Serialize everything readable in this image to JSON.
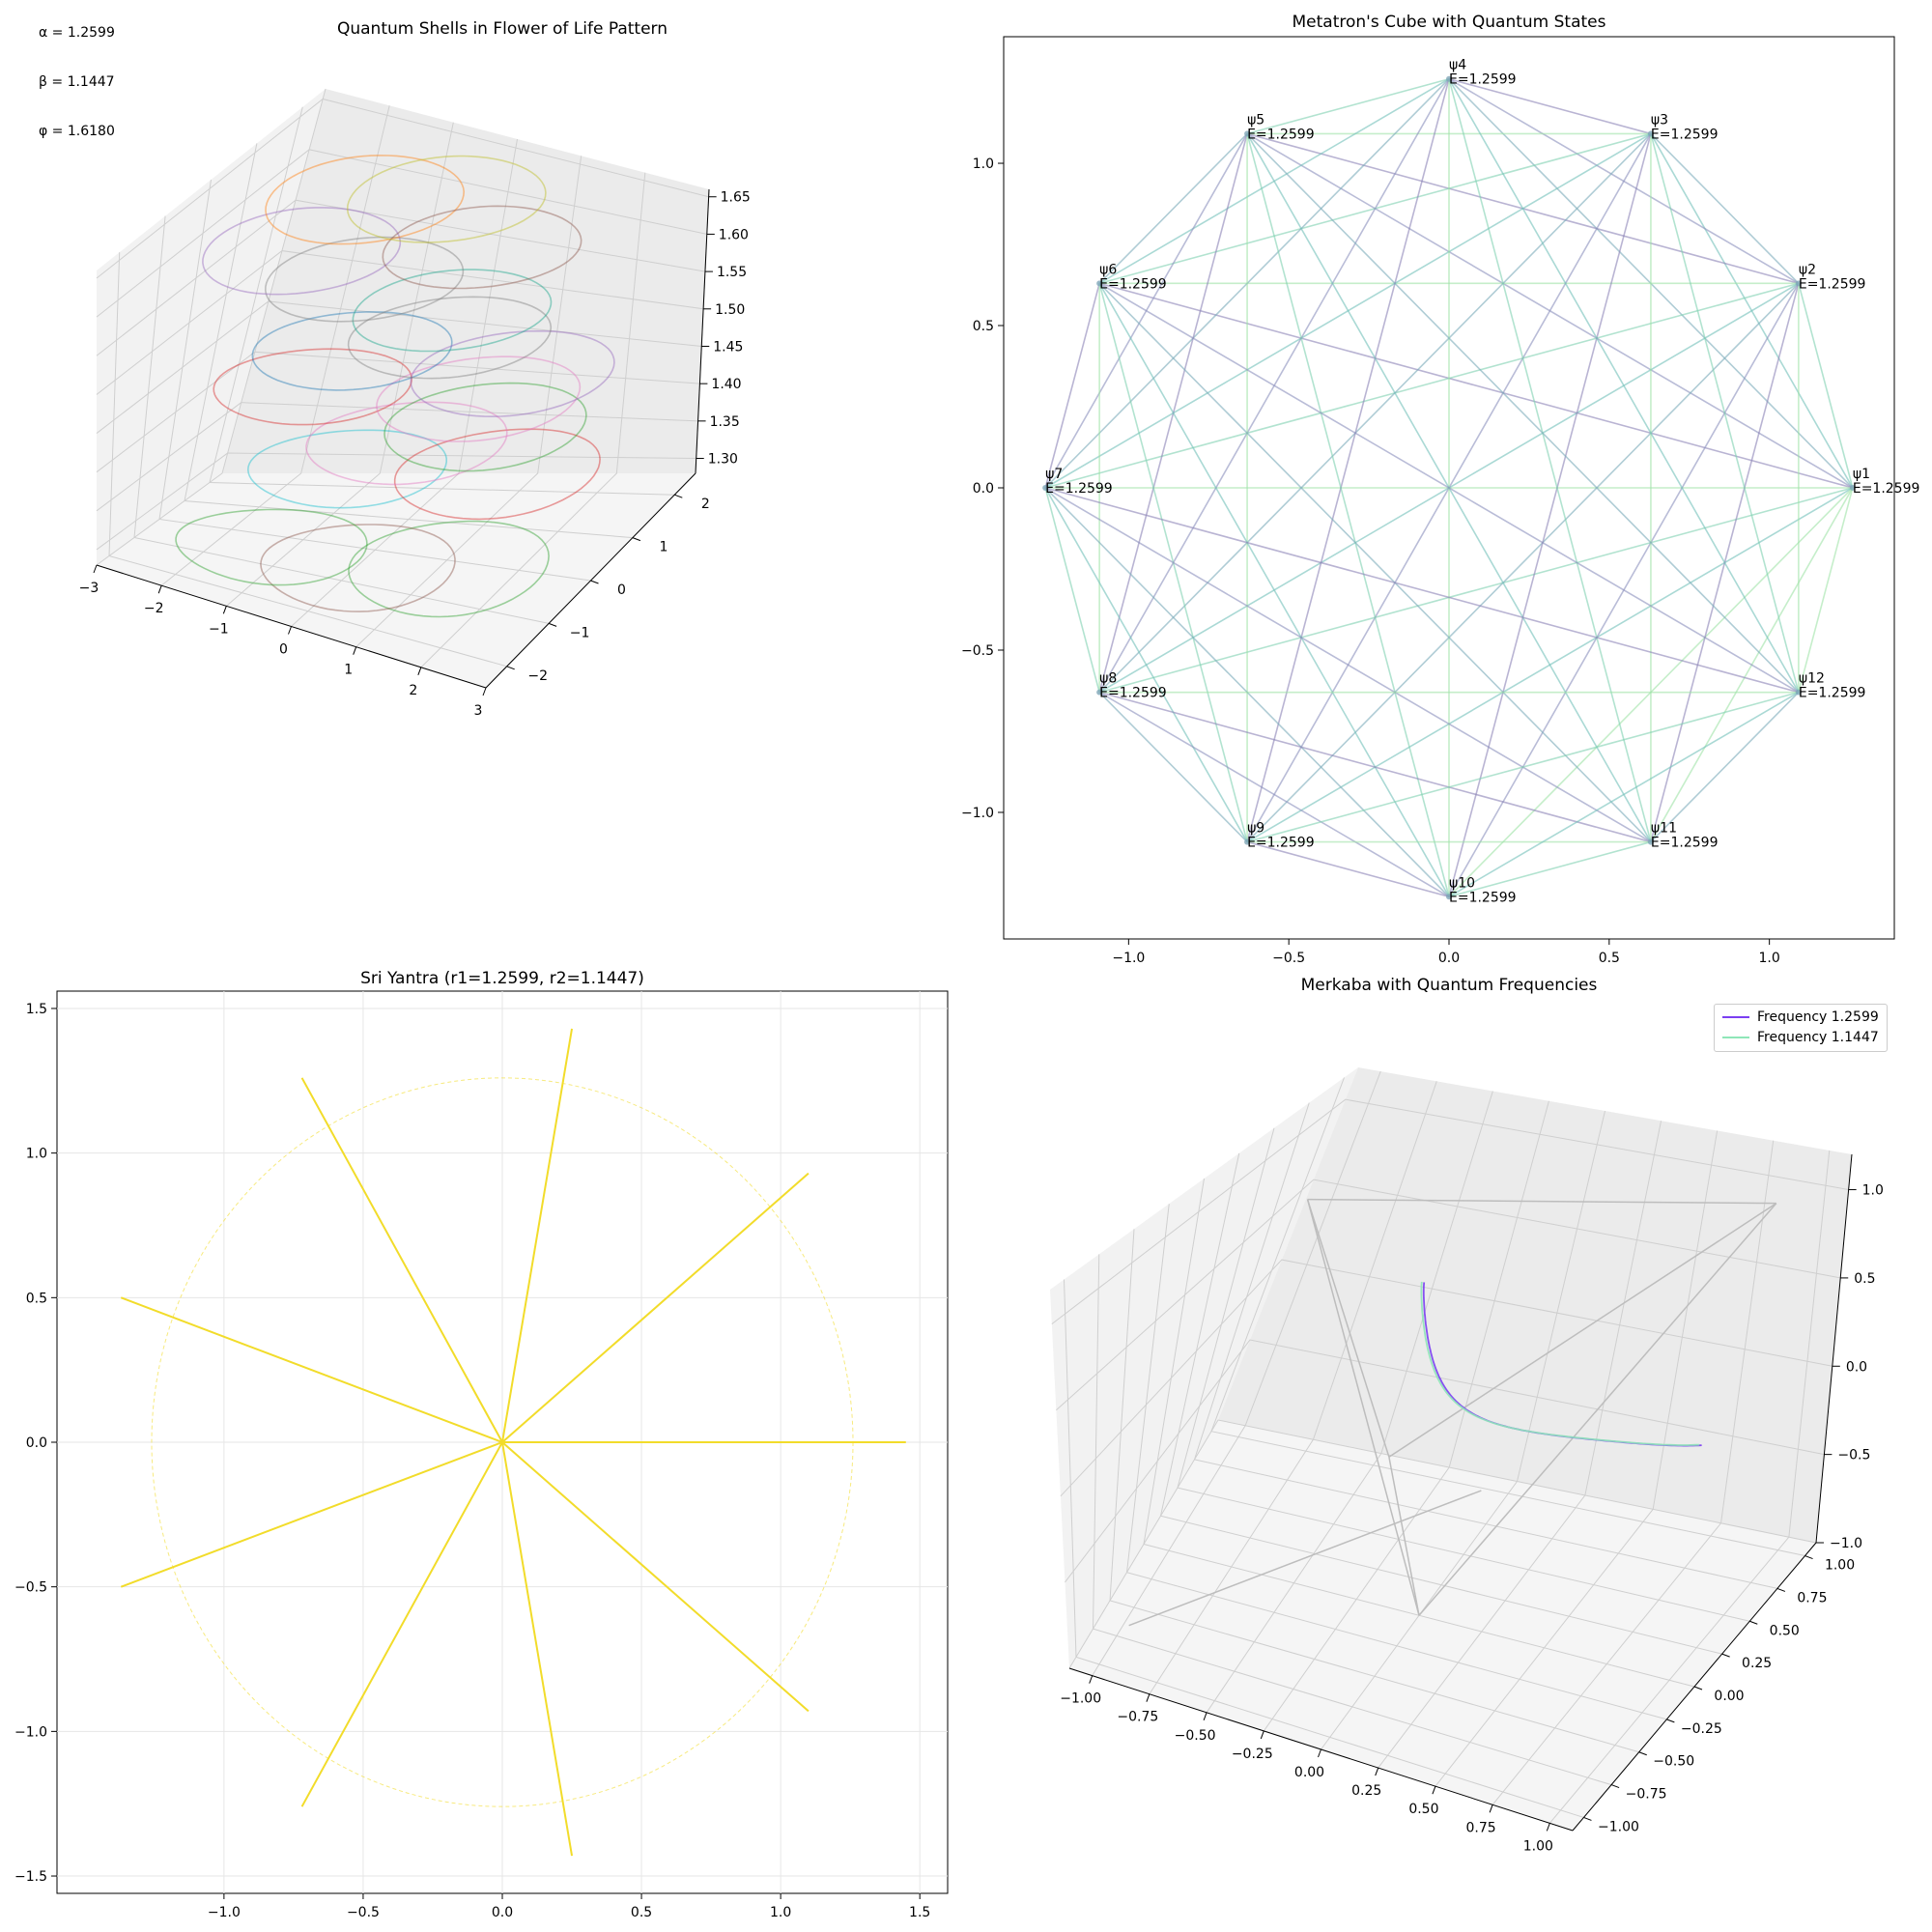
{
  "parameters_text": [
    "α = 1.2599",
    "β = 1.1447",
    "φ = 1.6180"
  ],
  "chart_data": [
    {
      "id": "flower",
      "type": "line",
      "title": "Quantum Shells in Flower of Life Pattern",
      "projection": "3d",
      "xlim": [
        -3,
        3
      ],
      "ylim": [
        -2.5,
        2.5
      ],
      "zlim": [
        1.28,
        1.66
      ],
      "x_ticks": [
        "−3",
        "−2",
        "−1",
        "0",
        "1",
        "2",
        "3"
      ],
      "y_ticks": [
        "−2",
        "−1",
        "0",
        "1",
        "2"
      ],
      "z_ticks": [
        "1.30",
        "1.35",
        "1.40",
        "1.45",
        "1.50",
        "1.55",
        "1.60",
        "1.65"
      ],
      "grid": true,
      "circle_radius": 1.2599,
      "shells": [
        {
          "cx": 1.3,
          "cy": -0.6,
          "z": 1.3,
          "color": "#2ca02c"
        },
        {
          "cx": 0.2,
          "cy": -1.0,
          "z": 1.3,
          "color": "#8c564b"
        },
        {
          "cx": -1.1,
          "cy": -0.9,
          "z": 1.3,
          "color": "#2ca02c"
        },
        {
          "cx": -0.6,
          "cy": 0.2,
          "z": 1.36,
          "color": "#17becf"
        },
        {
          "cx": 1.3,
          "cy": 0.6,
          "z": 1.36,
          "color": "#d62728"
        },
        {
          "cx": 0.1,
          "cy": 0.4,
          "z": 1.39,
          "color": "#e377c2"
        },
        {
          "cx": -1.4,
          "cy": 0.6,
          "z": 1.43,
          "color": "#d62728"
        },
        {
          "cx": 1.3,
          "cy": 0.2,
          "z": 1.43,
          "color": "#2ca02c"
        },
        {
          "cx": 0.8,
          "cy": 0.9,
          "z": 1.43,
          "color": "#e377c2"
        },
        {
          "cx": -1.1,
          "cy": 1.0,
          "z": 1.46,
          "color": "#1f77b4"
        },
        {
          "cx": 1.2,
          "cy": 1.0,
          "z": 1.46,
          "color": "#9467bd"
        },
        {
          "cx": 0.0,
          "cy": 1.5,
          "z": 1.47,
          "color": "#7f7f7f"
        },
        {
          "cx": 1.2,
          "cy": -0.6,
          "z": 1.59,
          "color": "#17a589"
        },
        {
          "cx": -0.4,
          "cy": -0.2,
          "z": 1.59,
          "color": "#7f7f7f"
        },
        {
          "cx": -1.5,
          "cy": 0.0,
          "z": 1.6,
          "color": "#9467bd"
        },
        {
          "cx": -1.3,
          "cy": 1.1,
          "z": 1.62,
          "color": "#ff7f0e"
        },
        {
          "cx": 0.9,
          "cy": 0.5,
          "z": 1.62,
          "color": "#8c564b"
        },
        {
          "cx": -0.2,
          "cy": 1.3,
          "z": 1.63,
          "color": "#bcbd22"
        }
      ]
    },
    {
      "id": "metatron",
      "type": "line",
      "title": "Metatron's Cube with Quantum States",
      "xlim": [
        -1.39,
        1.39
      ],
      "ylim": [
        -1.39,
        1.39
      ],
      "x_ticks": [
        -1.0,
        -0.5,
        0.0,
        0.5,
        1.0
      ],
      "y_ticks": [
        -1.0,
        -0.5,
        0.0,
        0.5,
        1.0
      ],
      "radius": 1.2599,
      "vertex_count": 12,
      "nodes": [
        {
          "label": "ψ1",
          "energy": "E=1.2599"
        },
        {
          "label": "ψ2",
          "energy": "E=1.2599"
        },
        {
          "label": "ψ3",
          "energy": "E=1.2599"
        },
        {
          "label": "ψ4",
          "energy": "E=1.2599"
        },
        {
          "label": "ψ5",
          "energy": "E=1.2599"
        },
        {
          "label": "ψ6",
          "energy": "E=1.2599"
        },
        {
          "label": "ψ7",
          "energy": "E=1.2599"
        },
        {
          "label": "ψ8",
          "energy": "E=1.2599"
        },
        {
          "label": "ψ9",
          "energy": "E=1.2599"
        },
        {
          "label": "ψ10",
          "energy": "E=1.2599"
        },
        {
          "label": "ψ11",
          "energy": "E=1.2599"
        },
        {
          "label": "ψ12",
          "energy": "E=1.2599"
        }
      ]
    },
    {
      "id": "yantra",
      "type": "line",
      "title": "Sri Yantra (r1=1.2599, r2=1.1447)",
      "xlim": [
        -1.6,
        1.6
      ],
      "ylim": [
        -1.56,
        1.56
      ],
      "x_ticks": [
        -1.0,
        -0.5,
        0.0,
        0.5,
        1.0,
        1.5
      ],
      "y_ticks": [
        -1.5,
        -1.0,
        -0.5,
        0.0,
        0.5,
        1.0,
        1.5
      ],
      "grid": true,
      "circle_radius": 1.2599,
      "color": "#f2dc2a",
      "rays": [
        [
          1.45,
          0.0
        ],
        [
          1.1,
          0.93
        ],
        [
          0.25,
          1.43
        ],
        [
          -0.72,
          1.26
        ],
        [
          -1.37,
          0.5
        ],
        [
          -1.37,
          -0.5
        ],
        [
          -0.72,
          -1.26
        ],
        [
          0.25,
          -1.43
        ],
        [
          1.1,
          -0.93
        ]
      ]
    },
    {
      "id": "merkaba",
      "type": "line",
      "title": "Merkaba with Quantum Frequencies",
      "projection": "3d",
      "xlim": [
        -1.1,
        1.1
      ],
      "ylim": [
        -1.1,
        1.1
      ],
      "zlim": [
        -1.0,
        1.2
      ],
      "x_ticks": [
        "−1.00",
        "−0.75",
        "−0.50",
        "−0.25",
        "0.00",
        "0.25",
        "0.50",
        "0.75",
        "1.00"
      ],
      "y_ticks": [
        "−1.00",
        "−0.75",
        "−0.50",
        "−0.25",
        "0.00",
        "0.25",
        "0.50",
        "0.75",
        "1.00"
      ],
      "z_ticks": [
        "−1.0",
        "−0.5",
        "0.0",
        "0.5",
        "1.0"
      ],
      "grid": true,
      "legend": "top-right",
      "series": [
        {
          "name": "Frequency 1.2599",
          "color": "#7b3ff2"
        },
        {
          "name": "Frequency 1.1447",
          "color": "#8fe6b8"
        }
      ]
    }
  ]
}
